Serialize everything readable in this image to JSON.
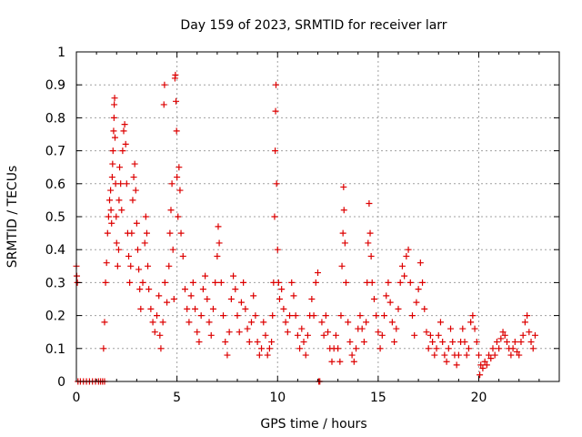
{
  "chart_data": {
    "type": "scatter",
    "title": "Day 159 of 2023, SRMTID for receiver larr",
    "xlabel": "GPS time / hours",
    "ylabel": "SRMTID / TECUs",
    "xlim": [
      0,
      24
    ],
    "ylim": [
      0,
      1
    ],
    "x_ticks": [
      0,
      5,
      10,
      15,
      20
    ],
    "x_tick_labels": [
      "0",
      "5",
      "10",
      "15",
      "20"
    ],
    "y_ticks": [
      0,
      0.1,
      0.2,
      0.3,
      0.4,
      0.5,
      0.6,
      0.7,
      0.8,
      0.9,
      1
    ],
    "y_tick_labels": [
      "0",
      "0.1",
      "0.2",
      "0.3",
      "0.4",
      "0.5",
      "0.6",
      "0.7",
      "0.8",
      "0.9",
      "1"
    ],
    "grid": true,
    "marker": "+",
    "colors": {
      "series": "#dd0000",
      "grid": "#a0a0a0",
      "axis": "#000000"
    },
    "series": [
      {
        "name": "SRMTID",
        "points": [
          [
            0.0,
            0.35
          ],
          [
            0.02,
            0.32
          ],
          [
            0.05,
            0.3
          ],
          [
            0.08,
            0.0
          ],
          [
            0.2,
            0.0
          ],
          [
            0.35,
            0.0
          ],
          [
            0.5,
            0.0
          ],
          [
            0.65,
            0.0
          ],
          [
            0.8,
            0.0
          ],
          [
            0.95,
            0.0
          ],
          [
            1.1,
            0.0
          ],
          [
            1.2,
            0.0
          ],
          [
            1.3,
            0.0
          ],
          [
            1.4,
            0.0
          ],
          [
            1.35,
            0.1
          ],
          [
            1.4,
            0.18
          ],
          [
            1.45,
            0.3
          ],
          [
            1.5,
            0.36
          ],
          [
            1.55,
            0.45
          ],
          [
            1.6,
            0.5
          ],
          [
            1.65,
            0.55
          ],
          [
            1.7,
            0.58
          ],
          [
            1.72,
            0.52
          ],
          [
            1.75,
            0.48
          ],
          [
            1.78,
            0.62
          ],
          [
            1.8,
            0.66
          ],
          [
            1.82,
            0.7
          ],
          [
            1.85,
            0.76
          ],
          [
            1.87,
            0.8
          ],
          [
            1.88,
            0.84
          ],
          [
            1.9,
            0.86
          ],
          [
            1.92,
            0.74
          ],
          [
            1.95,
            0.6
          ],
          [
            1.98,
            0.5
          ],
          [
            2.0,
            0.42
          ],
          [
            2.05,
            0.35
          ],
          [
            2.1,
            0.4
          ],
          [
            2.12,
            0.55
          ],
          [
            2.15,
            0.65
          ],
          [
            2.2,
            0.6
          ],
          [
            2.25,
            0.52
          ],
          [
            2.3,
            0.7
          ],
          [
            2.35,
            0.76
          ],
          [
            2.4,
            0.78
          ],
          [
            2.45,
            0.72
          ],
          [
            2.5,
            0.6
          ],
          [
            2.55,
            0.45
          ],
          [
            2.6,
            0.38
          ],
          [
            2.65,
            0.3
          ],
          [
            2.7,
            0.35
          ],
          [
            2.75,
            0.45
          ],
          [
            2.8,
            0.55
          ],
          [
            2.85,
            0.62
          ],
          [
            2.9,
            0.66
          ],
          [
            2.95,
            0.58
          ],
          [
            3.0,
            0.48
          ],
          [
            3.05,
            0.4
          ],
          [
            3.1,
            0.34
          ],
          [
            3.15,
            0.28
          ],
          [
            3.2,
            0.22
          ],
          [
            3.3,
            0.3
          ],
          [
            3.4,
            0.42
          ],
          [
            3.45,
            0.5
          ],
          [
            3.5,
            0.45
          ],
          [
            3.55,
            0.35
          ],
          [
            3.6,
            0.28
          ],
          [
            3.7,
            0.22
          ],
          [
            3.8,
            0.18
          ],
          [
            3.9,
            0.15
          ],
          [
            4.0,
            0.2
          ],
          [
            4.1,
            0.26
          ],
          [
            4.15,
            0.14
          ],
          [
            4.2,
            0.1
          ],
          [
            4.3,
            0.18
          ],
          [
            4.35,
            0.84
          ],
          [
            4.38,
            0.9
          ],
          [
            4.4,
            0.3
          ],
          [
            4.5,
            0.24
          ],
          [
            4.6,
            0.35
          ],
          [
            4.65,
            0.45
          ],
          [
            4.7,
            0.52
          ],
          [
            4.75,
            0.6
          ],
          [
            4.8,
            0.4
          ],
          [
            4.85,
            0.25
          ],
          [
            4.9,
            0.92
          ],
          [
            4.92,
            0.93
          ],
          [
            4.95,
            0.85
          ],
          [
            4.98,
            0.76
          ],
          [
            5.0,
            0.62
          ],
          [
            5.05,
            0.5
          ],
          [
            5.1,
            0.65
          ],
          [
            5.15,
            0.58
          ],
          [
            5.2,
            0.45
          ],
          [
            5.3,
            0.38
          ],
          [
            5.4,
            0.28
          ],
          [
            5.5,
            0.22
          ],
          [
            5.6,
            0.18
          ],
          [
            5.7,
            0.26
          ],
          [
            5.8,
            0.3
          ],
          [
            5.9,
            0.22
          ],
          [
            6.0,
            0.15
          ],
          [
            6.1,
            0.12
          ],
          [
            6.2,
            0.2
          ],
          [
            6.3,
            0.28
          ],
          [
            6.4,
            0.32
          ],
          [
            6.5,
            0.25
          ],
          [
            6.6,
            0.18
          ],
          [
            6.7,
            0.14
          ],
          [
            6.8,
            0.22
          ],
          [
            6.9,
            0.3
          ],
          [
            7.0,
            0.38
          ],
          [
            7.05,
            0.47
          ],
          [
            7.1,
            0.42
          ],
          [
            7.2,
            0.3
          ],
          [
            7.3,
            0.2
          ],
          [
            7.4,
            0.12
          ],
          [
            7.5,
            0.08
          ],
          [
            7.6,
            0.15
          ],
          [
            7.7,
            0.25
          ],
          [
            7.8,
            0.32
          ],
          [
            7.9,
            0.28
          ],
          [
            8.0,
            0.2
          ],
          [
            8.1,
            0.15
          ],
          [
            8.2,
            0.24
          ],
          [
            8.3,
            0.3
          ],
          [
            8.4,
            0.22
          ],
          [
            8.5,
            0.16
          ],
          [
            8.6,
            0.12
          ],
          [
            8.7,
            0.18
          ],
          [
            8.8,
            0.26
          ],
          [
            8.9,
            0.2
          ],
          [
            9.0,
            0.12
          ],
          [
            9.1,
            0.08
          ],
          [
            9.2,
            0.1
          ],
          [
            9.3,
            0.18
          ],
          [
            9.4,
            0.14
          ],
          [
            9.5,
            0.08
          ],
          [
            9.6,
            0.1
          ],
          [
            9.7,
            0.12
          ],
          [
            9.75,
            0.2
          ],
          [
            9.8,
            0.3
          ],
          [
            9.85,
            0.5
          ],
          [
            9.88,
            0.7
          ],
          [
            9.9,
            0.82
          ],
          [
            9.92,
            0.9
          ],
          [
            9.95,
            0.6
          ],
          [
            10.0,
            0.4
          ],
          [
            10.05,
            0.3
          ],
          [
            10.1,
            0.25
          ],
          [
            10.2,
            0.28
          ],
          [
            10.3,
            0.22
          ],
          [
            10.4,
            0.18
          ],
          [
            10.5,
            0.15
          ],
          [
            10.6,
            0.2
          ],
          [
            10.7,
            0.3
          ],
          [
            10.8,
            0.26
          ],
          [
            10.9,
            0.2
          ],
          [
            11.0,
            0.14
          ],
          [
            11.1,
            0.1
          ],
          [
            11.2,
            0.16
          ],
          [
            11.3,
            0.12
          ],
          [
            11.4,
            0.08
          ],
          [
            11.5,
            0.14
          ],
          [
            11.6,
            0.2
          ],
          [
            11.7,
            0.25
          ],
          [
            11.8,
            0.2
          ],
          [
            11.9,
            0.3
          ],
          [
            12.0,
            0.33
          ],
          [
            12.05,
            0.0
          ],
          [
            12.1,
            0.0
          ],
          [
            12.2,
            0.18
          ],
          [
            12.3,
            0.14
          ],
          [
            12.4,
            0.2
          ],
          [
            12.5,
            0.15
          ],
          [
            12.6,
            0.1
          ],
          [
            12.7,
            0.06
          ],
          [
            12.8,
            0.1
          ],
          [
            12.9,
            0.14
          ],
          [
            13.0,
            0.1
          ],
          [
            13.1,
            0.06
          ],
          [
            13.15,
            0.2
          ],
          [
            13.2,
            0.35
          ],
          [
            13.25,
            0.45
          ],
          [
            13.28,
            0.59
          ],
          [
            13.3,
            0.52
          ],
          [
            13.35,
            0.42
          ],
          [
            13.4,
            0.3
          ],
          [
            13.5,
            0.18
          ],
          [
            13.6,
            0.12
          ],
          [
            13.7,
            0.08
          ],
          [
            13.8,
            0.06
          ],
          [
            13.9,
            0.1
          ],
          [
            14.0,
            0.16
          ],
          [
            14.1,
            0.2
          ],
          [
            14.2,
            0.16
          ],
          [
            14.3,
            0.12
          ],
          [
            14.4,
            0.18
          ],
          [
            14.45,
            0.3
          ],
          [
            14.5,
            0.42
          ],
          [
            14.55,
            0.54
          ],
          [
            14.6,
            0.45
          ],
          [
            14.65,
            0.38
          ],
          [
            14.7,
            0.3
          ],
          [
            14.8,
            0.25
          ],
          [
            14.9,
            0.2
          ],
          [
            15.0,
            0.15
          ],
          [
            15.1,
            0.1
          ],
          [
            15.2,
            0.14
          ],
          [
            15.3,
            0.2
          ],
          [
            15.4,
            0.26
          ],
          [
            15.5,
            0.3
          ],
          [
            15.6,
            0.24
          ],
          [
            15.7,
            0.18
          ],
          [
            15.8,
            0.12
          ],
          [
            15.9,
            0.16
          ],
          [
            16.0,
            0.22
          ],
          [
            16.1,
            0.3
          ],
          [
            16.2,
            0.35
          ],
          [
            16.3,
            0.32
          ],
          [
            16.4,
            0.38
          ],
          [
            16.5,
            0.4
          ],
          [
            16.6,
            0.3
          ],
          [
            16.7,
            0.2
          ],
          [
            16.8,
            0.14
          ],
          [
            16.9,
            0.24
          ],
          [
            17.0,
            0.28
          ],
          [
            17.1,
            0.36
          ],
          [
            17.2,
            0.3
          ],
          [
            17.3,
            0.22
          ],
          [
            17.4,
            0.15
          ],
          [
            17.5,
            0.1
          ],
          [
            17.6,
            0.14
          ],
          [
            17.7,
            0.12
          ],
          [
            17.8,
            0.08
          ],
          [
            17.9,
            0.1
          ],
          [
            18.0,
            0.14
          ],
          [
            18.1,
            0.18
          ],
          [
            18.2,
            0.12
          ],
          [
            18.3,
            0.08
          ],
          [
            18.4,
            0.06
          ],
          [
            18.5,
            0.1
          ],
          [
            18.6,
            0.16
          ],
          [
            18.7,
            0.12
          ],
          [
            18.8,
            0.08
          ],
          [
            18.9,
            0.05
          ],
          [
            19.0,
            0.08
          ],
          [
            19.1,
            0.12
          ],
          [
            19.2,
            0.16
          ],
          [
            19.3,
            0.12
          ],
          [
            19.4,
            0.08
          ],
          [
            19.5,
            0.1
          ],
          [
            19.6,
            0.18
          ],
          [
            19.7,
            0.2
          ],
          [
            19.8,
            0.16
          ],
          [
            19.9,
            0.12
          ],
          [
            20.0,
            0.08
          ],
          [
            20.05,
            0.02
          ],
          [
            20.1,
            0.05
          ],
          [
            20.2,
            0.04
          ],
          [
            20.3,
            0.06
          ],
          [
            20.4,
            0.05
          ],
          [
            20.5,
            0.08
          ],
          [
            20.6,
            0.07
          ],
          [
            20.7,
            0.1
          ],
          [
            20.8,
            0.08
          ],
          [
            20.9,
            0.12
          ],
          [
            21.0,
            0.1
          ],
          [
            21.1,
            0.13
          ],
          [
            21.2,
            0.15
          ],
          [
            21.3,
            0.14
          ],
          [
            21.4,
            0.12
          ],
          [
            21.5,
            0.1
          ],
          [
            21.6,
            0.08
          ],
          [
            21.7,
            0.1
          ],
          [
            21.8,
            0.12
          ],
          [
            21.9,
            0.09
          ],
          [
            22.0,
            0.08
          ],
          [
            22.1,
            0.12
          ],
          [
            22.2,
            0.14
          ],
          [
            22.3,
            0.18
          ],
          [
            22.4,
            0.2
          ],
          [
            22.5,
            0.15
          ],
          [
            22.6,
            0.12
          ],
          [
            22.7,
            0.1
          ],
          [
            22.8,
            0.14
          ]
        ]
      }
    ]
  }
}
